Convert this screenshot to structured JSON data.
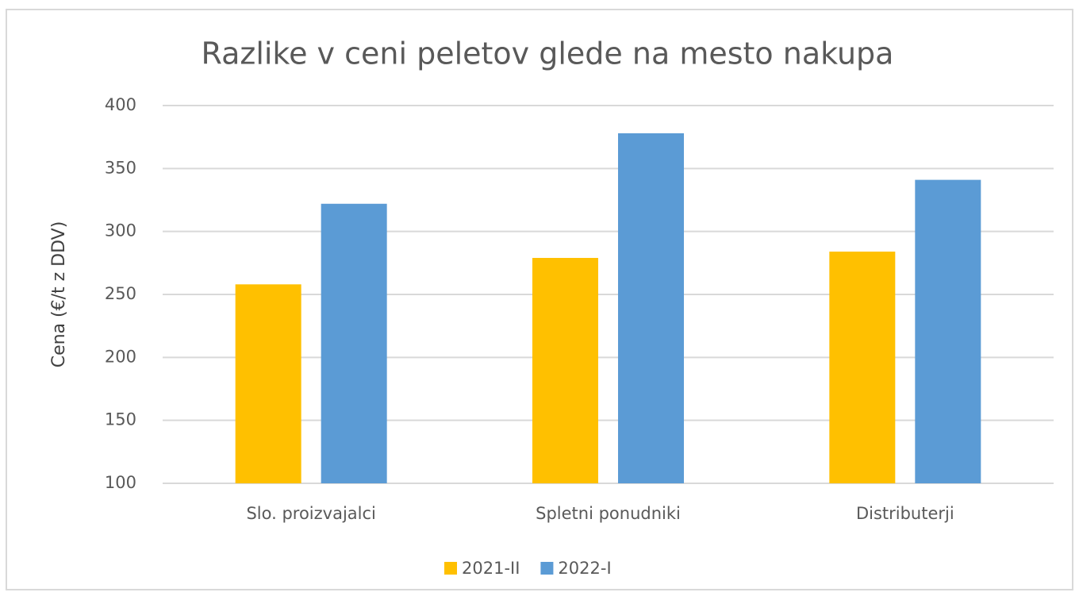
{
  "chart_data": {
    "type": "bar",
    "title": "Razlike v ceni peletov glede na mesto nakupa",
    "y_label": "Cena (€/t z DDV)",
    "categories": [
      "Slo. proizvajalci",
      "Spletni ponudniki",
      "Distributerji"
    ],
    "series": [
      {
        "name": "2021-II",
        "color": "#ffc000",
        "values": [
          258,
          279,
          284
        ]
      },
      {
        "name": "2022-I",
        "color": "#5b9bd5",
        "values": [
          322,
          378,
          341
        ]
      }
    ],
    "ylim": [
      100,
      400
    ],
    "yticks": [
      100,
      150,
      200,
      250,
      300,
      350,
      400
    ],
    "grid": true,
    "legend": "bottom"
  }
}
